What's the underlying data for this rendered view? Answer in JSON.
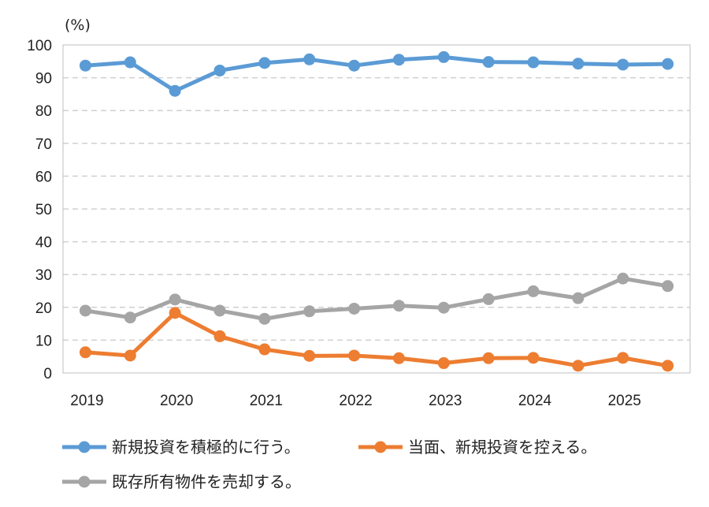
{
  "chart_data": {
    "type": "line",
    "unit_label": "(%)",
    "ylim": [
      0,
      100
    ],
    "y_ticks": [
      0,
      10,
      20,
      30,
      40,
      50,
      60,
      70,
      80,
      90,
      100
    ],
    "x_tick_labels": [
      "2019",
      "2020",
      "2021",
      "2022",
      "2023",
      "2024",
      "2025"
    ],
    "grid": true,
    "legend_position": "bottom",
    "series": [
      {
        "name": "新規投資を積極的に行う。",
        "color": "#5B9BD5",
        "values": [
          93.7,
          94.7,
          86.0,
          92.2,
          94.5,
          95.6,
          93.7,
          95.5,
          96.3,
          94.8,
          94.7,
          94.3,
          94.0,
          94.2
        ]
      },
      {
        "name": "当面、新規投資を控える。",
        "color": "#ED7D31",
        "values": [
          6.3,
          5.3,
          18.3,
          11.2,
          7.2,
          5.2,
          5.3,
          4.5,
          3.0,
          4.5,
          4.6,
          2.2,
          4.6,
          2.2
        ]
      },
      {
        "name": "既存所有物件を売却する。",
        "color": "#A5A5A5",
        "values": [
          19.0,
          16.9,
          22.4,
          19.0,
          16.5,
          18.8,
          19.6,
          20.5,
          19.9,
          22.5,
          24.9,
          22.8,
          28.8,
          26.5
        ]
      }
    ]
  }
}
